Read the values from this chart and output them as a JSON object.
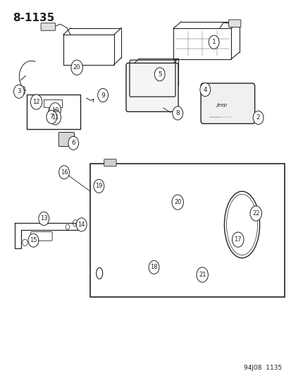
{
  "page_id": "8-1135",
  "footer": "94J08  1135",
  "bg_color": "#ffffff",
  "line_color": "#222222",
  "fig_width": 4.14,
  "fig_height": 5.33,
  "dpi": 100,
  "title_fontsize": 11,
  "footer_fontsize": 6.5
}
